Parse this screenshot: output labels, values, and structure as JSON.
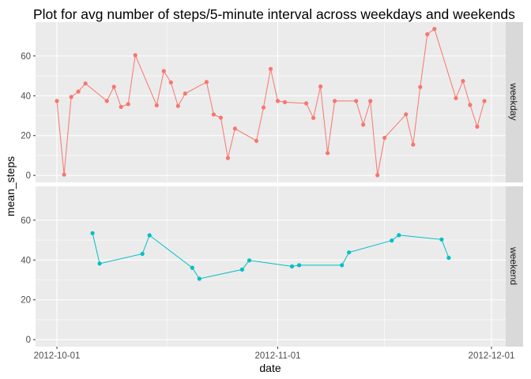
{
  "chart_data": {
    "type": "line",
    "title": "Plot for avg number of steps/5-minute interval across weekdays and weekends",
    "xlabel": "date",
    "ylabel": "mean_steps",
    "x_ticks": [
      "2012-10-01",
      "2012-11-01",
      "2012-12-01"
    ],
    "y_ticks": [
      0,
      20,
      40,
      60
    ],
    "xlim": [
      "2012-09-28",
      "2012-12-03"
    ],
    "ylim": [
      -3.5,
      77
    ],
    "grid": true,
    "legend": "none",
    "facets": [
      {
        "label": "weekday",
        "color": "#F8766D",
        "points": [
          [
            "2012-10-01",
            37.4
          ],
          [
            "2012-10-02",
            0.4
          ],
          [
            "2012-10-03",
            39.4
          ],
          [
            "2012-10-04",
            42.1
          ],
          [
            "2012-10-05",
            46.2
          ],
          [
            "2012-10-08",
            37.4
          ],
          [
            "2012-10-09",
            44.5
          ],
          [
            "2012-10-10",
            34.4
          ],
          [
            "2012-10-11",
            35.8
          ],
          [
            "2012-10-12",
            60.4
          ],
          [
            "2012-10-15",
            35.2
          ],
          [
            "2012-10-16",
            52.4
          ],
          [
            "2012-10-17",
            46.7
          ],
          [
            "2012-10-18",
            34.9
          ],
          [
            "2012-10-19",
            41.1
          ],
          [
            "2012-10-22",
            46.9
          ],
          [
            "2012-10-23",
            30.6
          ],
          [
            "2012-10-24",
            29.0
          ],
          [
            "2012-10-25",
            8.7
          ],
          [
            "2012-10-26",
            23.5
          ],
          [
            "2012-10-29",
            17.4
          ],
          [
            "2012-10-30",
            34.1
          ],
          [
            "2012-10-31",
            53.5
          ],
          [
            "2012-11-01",
            37.4
          ],
          [
            "2012-11-02",
            36.8
          ],
          [
            "2012-11-05",
            36.2
          ],
          [
            "2012-11-06",
            28.9
          ],
          [
            "2012-11-07",
            44.7
          ],
          [
            "2012-11-08",
            11.2
          ],
          [
            "2012-11-09",
            37.4
          ],
          [
            "2012-11-12",
            37.4
          ],
          [
            "2012-11-13",
            25.5
          ],
          [
            "2012-11-14",
            37.4
          ],
          [
            "2012-11-15",
            0.1
          ],
          [
            "2012-11-16",
            18.9
          ],
          [
            "2012-11-19",
            30.7
          ],
          [
            "2012-11-20",
            15.5
          ],
          [
            "2012-11-21",
            44.4
          ],
          [
            "2012-11-22",
            70.9
          ],
          [
            "2012-11-23",
            73.6
          ],
          [
            "2012-11-26",
            38.8
          ],
          [
            "2012-11-27",
            47.4
          ],
          [
            "2012-11-28",
            35.4
          ],
          [
            "2012-11-29",
            24.5
          ],
          [
            "2012-11-30",
            37.4
          ]
        ]
      },
      {
        "label": "weekend",
        "color": "#00BFC4",
        "points": [
          [
            "2012-10-06",
            53.5
          ],
          [
            "2012-10-07",
            38.2
          ],
          [
            "2012-10-13",
            43.1
          ],
          [
            "2012-10-14",
            52.4
          ],
          [
            "2012-10-20",
            36.1
          ],
          [
            "2012-10-21",
            30.6
          ],
          [
            "2012-10-27",
            35.2
          ],
          [
            "2012-10-28",
            39.8
          ],
          [
            "2012-11-03",
            36.8
          ],
          [
            "2012-11-04",
            37.4
          ],
          [
            "2012-11-10",
            37.4
          ],
          [
            "2012-11-11",
            43.8
          ],
          [
            "2012-11-17",
            49.8
          ],
          [
            "2012-11-18",
            52.5
          ],
          [
            "2012-11-24",
            50.3
          ],
          [
            "2012-11-25",
            41.1
          ]
        ]
      }
    ]
  }
}
